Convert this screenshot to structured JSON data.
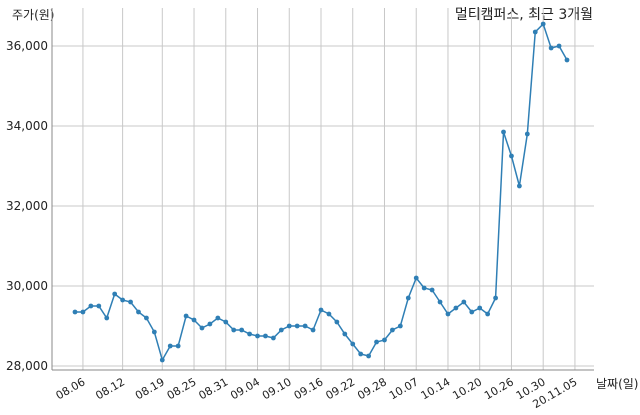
{
  "chart_data": {
    "type": "line",
    "title": "멀티캠퍼스, 최근 3개월",
    "ylabel": "주가(원)",
    "xlabel": "날짜(일)",
    "ylim": [
      27900,
      36950
    ],
    "yticks": [
      {
        "value": 28000,
        "label": "28,000"
      },
      {
        "value": 30000,
        "label": "30,000"
      },
      {
        "value": 32000,
        "label": "32,000"
      },
      {
        "value": 34000,
        "label": "34,000"
      },
      {
        "value": 36000,
        "label": "36,000"
      }
    ],
    "xticks": [
      {
        "index": 1,
        "label": "08.06"
      },
      {
        "index": 6,
        "label": "08.12"
      },
      {
        "index": 11,
        "label": "08.19"
      },
      {
        "index": 15,
        "label": "08.25"
      },
      {
        "index": 19,
        "label": "08.31"
      },
      {
        "index": 23,
        "label": "09.04"
      },
      {
        "index": 27,
        "label": "09.10"
      },
      {
        "index": 31,
        "label": "09.16"
      },
      {
        "index": 35,
        "label": "09.22"
      },
      {
        "index": 39,
        "label": "09.28"
      },
      {
        "index": 43,
        "label": "10.07"
      },
      {
        "index": 47,
        "label": "10.14"
      },
      {
        "index": 51,
        "label": "10.20"
      },
      {
        "index": 55,
        "label": "10.26"
      },
      {
        "index": 59,
        "label": "10.30"
      },
      {
        "index": 63,
        "label": "20.11.05"
      }
    ],
    "grid": true,
    "color": "#2f7fb5",
    "series": [
      {
        "values": [
          29350,
          29350,
          29500,
          29500,
          29200,
          29800,
          29650,
          29600,
          29350,
          29200,
          28850,
          28150,
          28500,
          28500,
          29250,
          29150,
          28950,
          29050,
          29200,
          29100,
          28900,
          28900,
          28800,
          28750,
          28750,
          28700,
          28900,
          29000,
          29000,
          29000,
          28900,
          29400,
          29300,
          29100,
          28800,
          28550,
          28300,
          28250,
          28600,
          28650,
          28900,
          29000,
          29700,
          30200,
          29950,
          29900,
          29600,
          29300,
          29450,
          29600,
          29350,
          29450,
          29300,
          29700,
          33850,
          33250,
          32500,
          33800,
          36350,
          36550,
          35950,
          36000,
          35650
        ]
      }
    ]
  }
}
